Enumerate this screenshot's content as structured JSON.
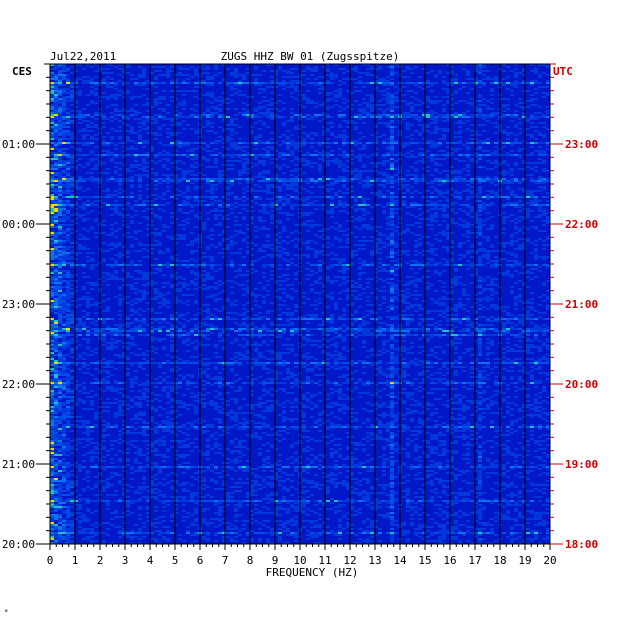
{
  "chart_data": {
    "type": "heatmap",
    "date": "Jul22,2011",
    "title": "ZUGS HHZ BW 01 (Zugsspitze)",
    "xlabel": "FREQUENCY (HZ)",
    "left_axis_label": "CES",
    "right_axis_label": "UTC",
    "xlim": [
      0,
      20
    ],
    "x_ticks": [
      "0",
      "1",
      "2",
      "3",
      "4",
      "5",
      "6",
      "7",
      "8",
      "9",
      "10",
      "11",
      "12",
      "13",
      "14",
      "15",
      "16",
      "17",
      "18",
      "19",
      "20"
    ],
    "left_time_ticks": [
      "01:00",
      "00:00",
      "23:00",
      "22:00",
      "21:00",
      "20:00"
    ],
    "right_time_ticks": [
      "23:00",
      "22:00",
      "21:00",
      "20:00",
      "19:00",
      "18:00"
    ],
    "time_span_hours": 6,
    "colors": {
      "background": "#0018c8",
      "text": "#000000",
      "utc": "#cc0000",
      "grid": "#000000"
    },
    "footnote": "*"
  }
}
